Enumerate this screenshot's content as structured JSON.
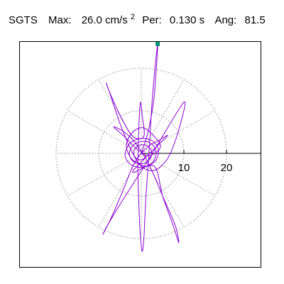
{
  "header": {
    "station": "SGTS",
    "max_label": "Max:",
    "max_value": "26.0 cm/s",
    "max_exponent": "2",
    "period_label": "Per:",
    "period_value": "0.130 s",
    "angle_label": "Ang:",
    "angle_value": "81.5"
  },
  "chart_data": {
    "type": "polar-orbit",
    "title": "",
    "units": "cm/s^2",
    "max_amplitude": 26.0,
    "period_s": 0.13,
    "peak_angle_deg": 81.5,
    "radial_ticks": [
      10,
      20
    ],
    "radial_tick_labels": [
      "10",
      "20"
    ],
    "ring_radii": [
      10,
      20
    ],
    "spoke_angles_deg": [
      0,
      30,
      60,
      90,
      120,
      150,
      180,
      210,
      240,
      270,
      300,
      330
    ],
    "grid": true,
    "peak_marker": {
      "x": 3.85,
      "y": 25.7
    },
    "trace_color": "#8b00d2",
    "marker_color": "#009070",
    "grid_color": "#888888",
    "orbit": [
      [
        0,
        0
      ],
      [
        0.6,
        1.8
      ],
      [
        1.2,
        3.6
      ],
      [
        1.8,
        6.0
      ],
      [
        2.4,
        9.0
      ],
      [
        3.0,
        13.0
      ],
      [
        3.4,
        18.0
      ],
      [
        3.7,
        22.5
      ],
      [
        3.85,
        25.7
      ],
      [
        3.3,
        21.0
      ],
      [
        2.6,
        13.0
      ],
      [
        2.1,
        5.0
      ],
      [
        1.6,
        -3.0
      ],
      [
        1.1,
        -10.0
      ],
      [
        0.8,
        -16.0
      ],
      [
        0.6,
        -20.0
      ],
      [
        0.2,
        -23.0
      ],
      [
        -0.3,
        -18.0
      ],
      [
        -0.6,
        -11.0
      ],
      [
        -0.8,
        -4.0
      ],
      [
        -0.7,
        2.0
      ],
      [
        -0.5,
        8.0
      ],
      [
        -0.2,
        12.0
      ],
      [
        0.2,
        9.0
      ],
      [
        0.6,
        4.0
      ],
      [
        -2.0,
        4.0
      ],
      [
        -5.0,
        9.0
      ],
      [
        -7.5,
        14.5
      ],
      [
        -8.2,
        16.5
      ],
      [
        -7.0,
        13.0
      ],
      [
        -5.0,
        7.0
      ],
      [
        -2.5,
        1.0
      ],
      [
        0.0,
        -3.0
      ],
      [
        3.0,
        -4.0
      ],
      [
        6.0,
        -1.5
      ],
      [
        8.0,
        3.0
      ],
      [
        9.2,
        7.0
      ],
      [
        10.2,
        11.0
      ],
      [
        10.0,
        12.0
      ],
      [
        8.0,
        9.0
      ],
      [
        5.0,
        4.0
      ],
      [
        2.0,
        -1.0
      ],
      [
        -1.5,
        -6.5
      ],
      [
        -5.0,
        -12.0
      ],
      [
        -8.0,
        -17.0
      ],
      [
        -9.0,
        -19.0
      ],
      [
        -7.0,
        -15.0
      ],
      [
        -4.0,
        -8.0
      ],
      [
        -1.5,
        -2.0
      ],
      [
        1.5,
        1.5
      ],
      [
        4.0,
        3.0
      ],
      [
        6.2,
        4.2
      ],
      [
        4.0,
        2.0
      ],
      [
        1.0,
        -1.0
      ],
      [
        -2.0,
        -4.5
      ],
      [
        3.0,
        -3.0
      ],
      [
        5.0,
        -10.0
      ],
      [
        7.5,
        -17.0
      ],
      [
        8.8,
        -21.0
      ],
      [
        8.0,
        -17.0
      ],
      [
        5.0,
        -10.0
      ],
      [
        2.0,
        -3.0
      ],
      [
        -1.0,
        2.0
      ],
      [
        -4.0,
        5.0
      ],
      [
        -6.5,
        6.2
      ],
      [
        -4.0,
        4.0
      ],
      [
        -1.0,
        1.0
      ],
      [
        2.0,
        -0.5
      ],
      [
        4.5,
        1.5
      ],
      [
        3.0,
        4.0
      ],
      [
        0.5,
        6.0
      ],
      [
        -2.0,
        5.0
      ],
      [
        -3.5,
        2.0
      ],
      [
        -2.5,
        -1.0
      ],
      [
        -0.5,
        -2.5
      ],
      [
        1.5,
        -3.0
      ],
      [
        3.5,
        -1.5
      ],
      [
        4.0,
        1.0
      ],
      [
        2.5,
        3.0
      ],
      [
        0.0,
        3.5
      ],
      [
        -2.5,
        2.5
      ],
      [
        -3.8,
        0.0
      ],
      [
        -3.0,
        -2.2
      ],
      [
        -1.0,
        -3.2
      ],
      [
        1.2,
        -3.0
      ],
      [
        3.0,
        -1.6
      ],
      [
        3.4,
        0.6
      ],
      [
        2.2,
        2.4
      ],
      [
        0.2,
        2.8
      ],
      [
        -1.8,
        2.0
      ],
      [
        -2.8,
        0.2
      ],
      [
        -2.2,
        -1.6
      ],
      [
        -0.6,
        -2.4
      ],
      [
        1.0,
        -2.2
      ],
      [
        2.2,
        -1.0
      ],
      [
        2.4,
        0.6
      ],
      [
        1.4,
        1.8
      ],
      [
        0.0,
        2.0
      ],
      [
        -1.3,
        1.3
      ],
      [
        -1.8,
        0.0
      ],
      [
        -1.2,
        -1.2
      ],
      [
        0.0,
        -1.5
      ],
      [
        1.0,
        -0.8
      ],
      [
        0.0,
        0.0
      ]
    ]
  }
}
